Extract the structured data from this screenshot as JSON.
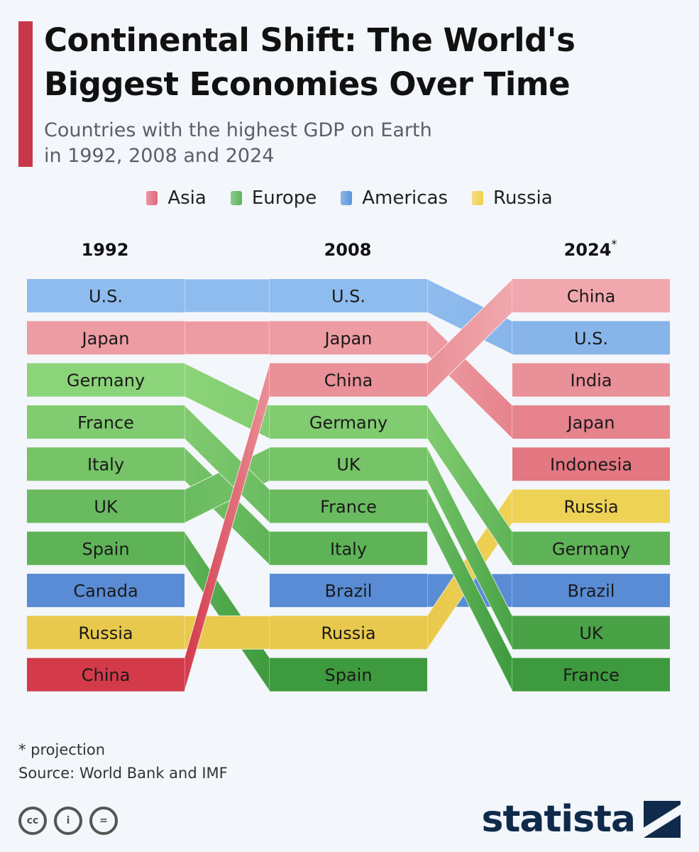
{
  "title": {
    "line1": "Continental Shift: The World's",
    "line2": "Biggest Economies Over Time"
  },
  "subtitle": {
    "line1": "Countries with the highest GDP on Earth",
    "line2": "in 1992, 2008 and 2024"
  },
  "legend": [
    {
      "label": "Asia",
      "color": "#e2677a"
    },
    {
      "label": "Europe",
      "color": "#59b55a"
    },
    {
      "label": "Americas",
      "color": "#5b95dc"
    },
    {
      "label": "Russia",
      "color": "#f1d04a"
    }
  ],
  "chart_data": {
    "type": "table",
    "columns": [
      {
        "year": "1992",
        "marker": ""
      },
      {
        "year": "2008",
        "marker": ""
      },
      {
        "year": "2024",
        "marker": "*"
      }
    ],
    "region_colors": {
      "Asia": {
        "light": "#f0a8ae",
        "dark": "#d33a4a"
      },
      "Europe": {
        "light": "#a2e48a",
        "dark": "#3e9a3e"
      },
      "Americas": {
        "light": "#8fbcee",
        "dark": "#4a7ece"
      },
      "Russia": {
        "light": "#f4e166",
        "dark": "#e8c64a"
      }
    },
    "countries": [
      {
        "name": "U.S.",
        "region": "Americas",
        "ranks": [
          1,
          1,
          2
        ]
      },
      {
        "name": "Japan",
        "region": "Asia",
        "ranks": [
          2,
          2,
          4
        ]
      },
      {
        "name": "Germany",
        "region": "Europe",
        "ranks": [
          3,
          4,
          7
        ]
      },
      {
        "name": "France",
        "region": "Europe",
        "ranks": [
          4,
          6,
          10
        ]
      },
      {
        "name": "Italy",
        "region": "Europe",
        "ranks": [
          5,
          7,
          null
        ]
      },
      {
        "name": "UK",
        "region": "Europe",
        "ranks": [
          6,
          5,
          9
        ]
      },
      {
        "name": "Spain",
        "region": "Europe",
        "ranks": [
          7,
          10,
          null
        ]
      },
      {
        "name": "Canada",
        "region": "Americas",
        "ranks": [
          8,
          null,
          null
        ]
      },
      {
        "name": "Russia",
        "region": "Russia",
        "ranks": [
          9,
          9,
          6
        ]
      },
      {
        "name": "China",
        "region": "Asia",
        "ranks": [
          10,
          3,
          1
        ]
      },
      {
        "name": "Brazil",
        "region": "Americas",
        "ranks": [
          null,
          8,
          8
        ]
      },
      {
        "name": "India",
        "region": "Asia",
        "ranks": [
          null,
          null,
          3
        ]
      },
      {
        "name": "Indonesia",
        "region": "Asia",
        "ranks": [
          null,
          null,
          5
        ]
      }
    ]
  },
  "footnote": {
    "projection": "* projection",
    "source": "Source: World Bank and IMF"
  },
  "brand": {
    "name": "statista"
  },
  "license_icons": [
    {
      "icon": "cc-icon",
      "glyph": "cc"
    },
    {
      "icon": "attribution-icon",
      "glyph": "i"
    },
    {
      "icon": "no-derivatives-icon",
      "glyph": "="
    }
  ]
}
